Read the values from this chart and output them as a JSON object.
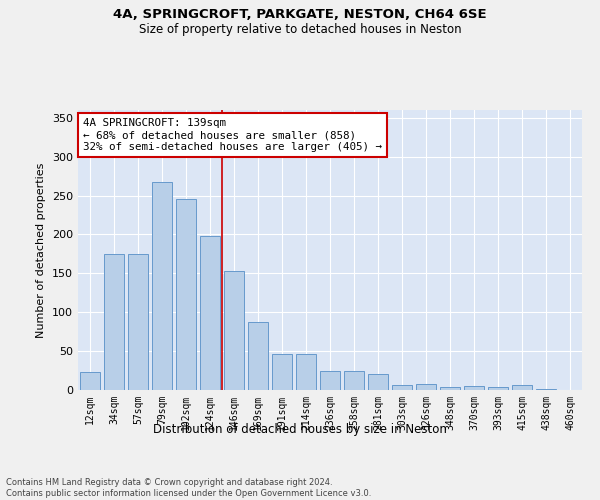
{
  "title1": "4A, SPRINGCROFT, PARKGATE, NESTON, CH64 6SE",
  "title2": "Size of property relative to detached houses in Neston",
  "xlabel": "Distribution of detached houses by size in Neston",
  "ylabel": "Number of detached properties",
  "footnote": "Contains HM Land Registry data © Crown copyright and database right 2024.\nContains public sector information licensed under the Open Government Licence v3.0.",
  "categories": [
    "12sqm",
    "34sqm",
    "57sqm",
    "79sqm",
    "102sqm",
    "124sqm",
    "146sqm",
    "169sqm",
    "191sqm",
    "214sqm",
    "236sqm",
    "258sqm",
    "281sqm",
    "303sqm",
    "326sqm",
    "348sqm",
    "370sqm",
    "393sqm",
    "415sqm",
    "438sqm",
    "460sqm"
  ],
  "values": [
    23,
    175,
    175,
    268,
    245,
    198,
    153,
    88,
    46,
    46,
    25,
    25,
    20,
    7,
    8,
    4,
    5,
    4,
    6,
    1,
    0
  ],
  "bar_color": "#b8cfe8",
  "bar_edge_color": "#6699cc",
  "bg_color": "#dce6f5",
  "grid_color": "#ffffff",
  "vline_x": 5.5,
  "vline_color": "#cc0000",
  "annotation_box_text": "4A SPRINGCROFT: 139sqm\n← 68% of detached houses are smaller (858)\n32% of semi-detached houses are larger (405) →",
  "annotation_box_color": "#cc0000",
  "annotation_box_bg": "#ffffff",
  "ylim": [
    0,
    360
  ],
  "yticks": [
    0,
    50,
    100,
    150,
    200,
    250,
    300,
    350
  ],
  "fig_bg": "#f0f0f0"
}
